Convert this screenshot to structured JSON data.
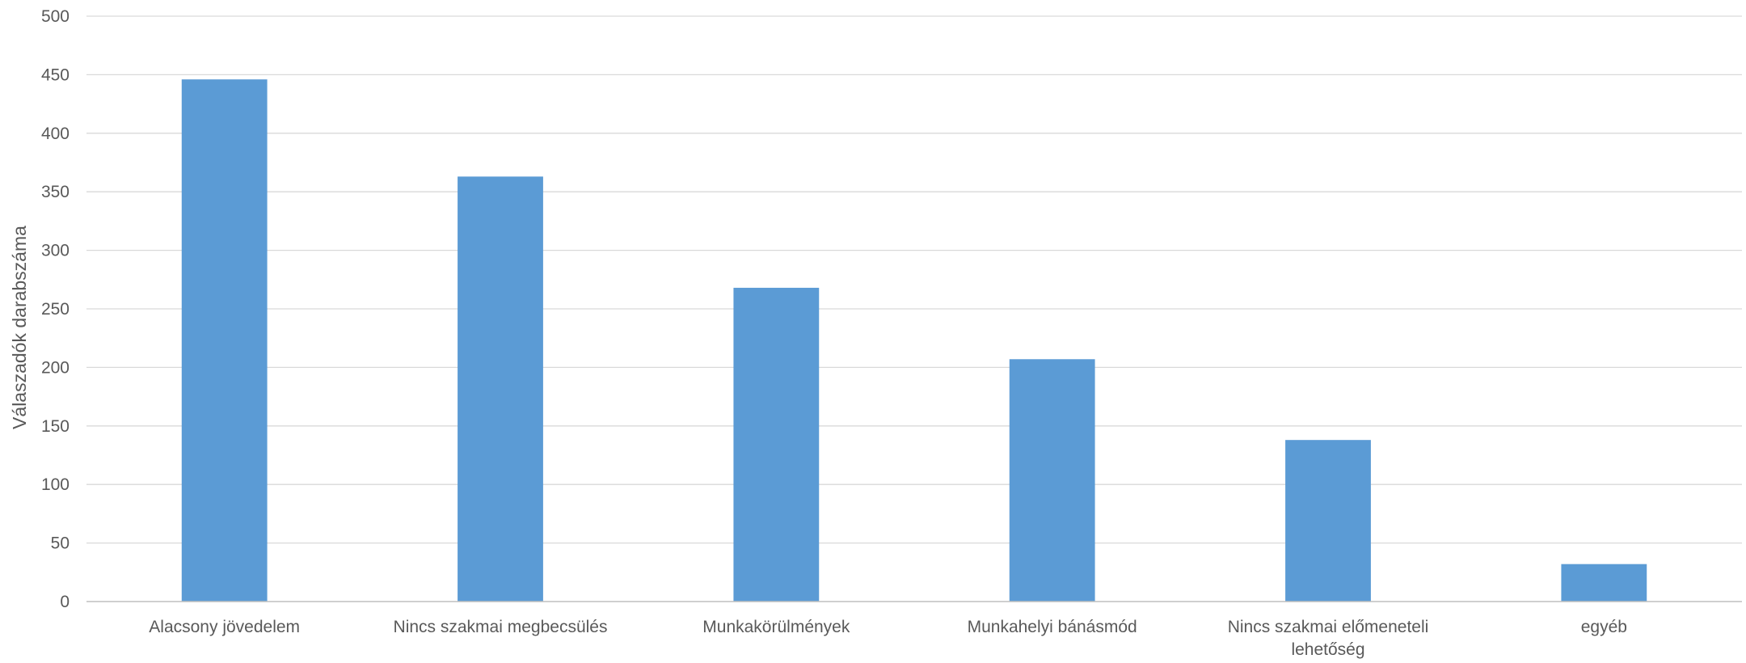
{
  "chart_data": {
    "type": "bar",
    "categories": [
      "Alacsony jövedelem",
      "Nincs szakmai megbecsülés",
      "Munkakörülmények",
      "Munkahelyi bánásmód",
      "Nincs szakmai előmeneteli lehetőség",
      "egyéb"
    ],
    "category_label_lines": [
      [
        "Alacsony jövedelem"
      ],
      [
        "Nincs szakmai megbecsülés"
      ],
      [
        "Munkakörülmények"
      ],
      [
        "Munkahelyi bánásmód"
      ],
      [
        "Nincs szakmai előmeneteli",
        "lehetőség"
      ],
      [
        "egyéb"
      ]
    ],
    "values": [
      446,
      363,
      268,
      207,
      138,
      32
    ],
    "title": "",
    "xlabel": "",
    "ylabel": "Válaszadók darabszáma",
    "ylim": [
      0,
      500
    ],
    "yticks": [
      0,
      50,
      100,
      150,
      200,
      250,
      300,
      350,
      400,
      450,
      500
    ],
    "grid": true,
    "legend": "none",
    "bar_color": "#5b9bd5"
  }
}
